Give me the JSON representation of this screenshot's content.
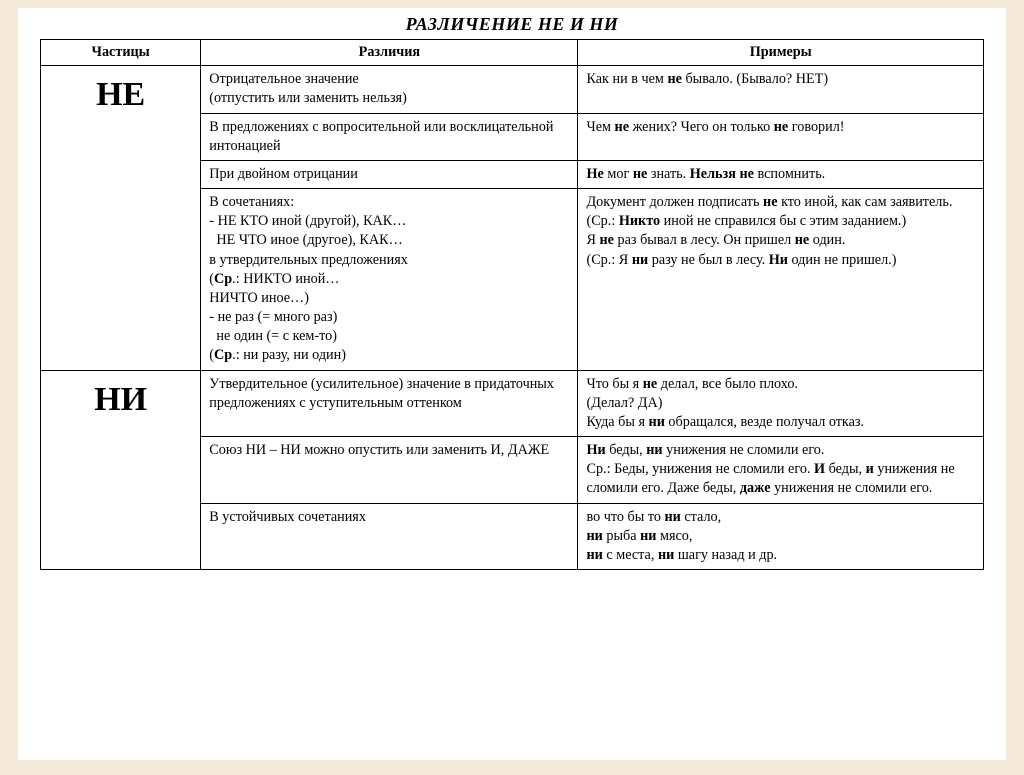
{
  "title": "РАЗЛИЧЕНИЕ НЕ И НИ",
  "headers": {
    "col1": "Частицы",
    "col2": "Различия",
    "col3": "Примеры"
  },
  "ne": {
    "label": "НЕ",
    "rows": [
      {
        "diff": "Отрицательное значение<br>(отпустить или заменить нельзя)",
        "ex": "Как ни в чем <b>не</b> бывало. (Бывало? НЕТ)"
      },
      {
        "diff": "В предложениях с вопросительной или восклицательной интонацией",
        "ex": "Чем <b>не</b> жених? Чего он только <b>не</b> говорил!"
      },
      {
        "diff": "При двойном отрицании",
        "ex": "<b>Не</b> мог <b>не</b> знать. <b>Нельзя не</b> вспомнить."
      },
      {
        "diff": "В сочетаниях:<br>- НЕ КТО иной (другой), КАК…<br>&nbsp;&nbsp;НЕ ЧТО иное (другое), КАК…<br>в утвердительных предложениях<br>(<b>Ср</b>.: НИКТО иной…<br>НИЧТО иное…)<br>- не раз (= много раз)<br>&nbsp;&nbsp;не один (= с кем-то)<br>(<b>Ср</b>.: ни разу, ни один)",
        "ex": "Документ должен подписать <b>не</b> кто иной, как сам заявитель.<br>(Ср.: <b>Никто</b> иной не справился бы с этим заданием.)<br>Я <b>не</b> раз бывал в лесу. Он пришел <b>не</b> один.<br>(Ср.: Я <b>ни</b> разу не был в лесу. <b>Ни</b> один не пришел.)"
      }
    ]
  },
  "ni": {
    "label": "НИ",
    "rows": [
      {
        "diff": "Утвердительное (усилительное) значение в придаточных предложениях с уступительным оттенком",
        "ex": "Что бы я <b>не</b> делал, все было плохо.<br>(Делал? ДА)<br>Куда бы я <b>ни</b> обращался, везде получал отказ."
      },
      {
        "diff": "Союз НИ – НИ можно опустить или заменить И, ДАЖЕ",
        "ex": "<b>Ни</b> беды, <b>ни</b> унижения не сломили его.<br>Ср.: Беды, унижения не сломили его. <b>И</b> беды, <b>и</b> унижения не сломили его. Даже беды, <b>даже</b> унижения не сломили его."
      },
      {
        "diff": "В устойчивых сочетаниях",
        "ex": "во что бы то <b>ни</b> стало,<br><b>ни</b> рыба <b>ни</b> мясо,<br><b>ни</b> с места, <b>ни</b> шагу назад и др."
      }
    ]
  }
}
